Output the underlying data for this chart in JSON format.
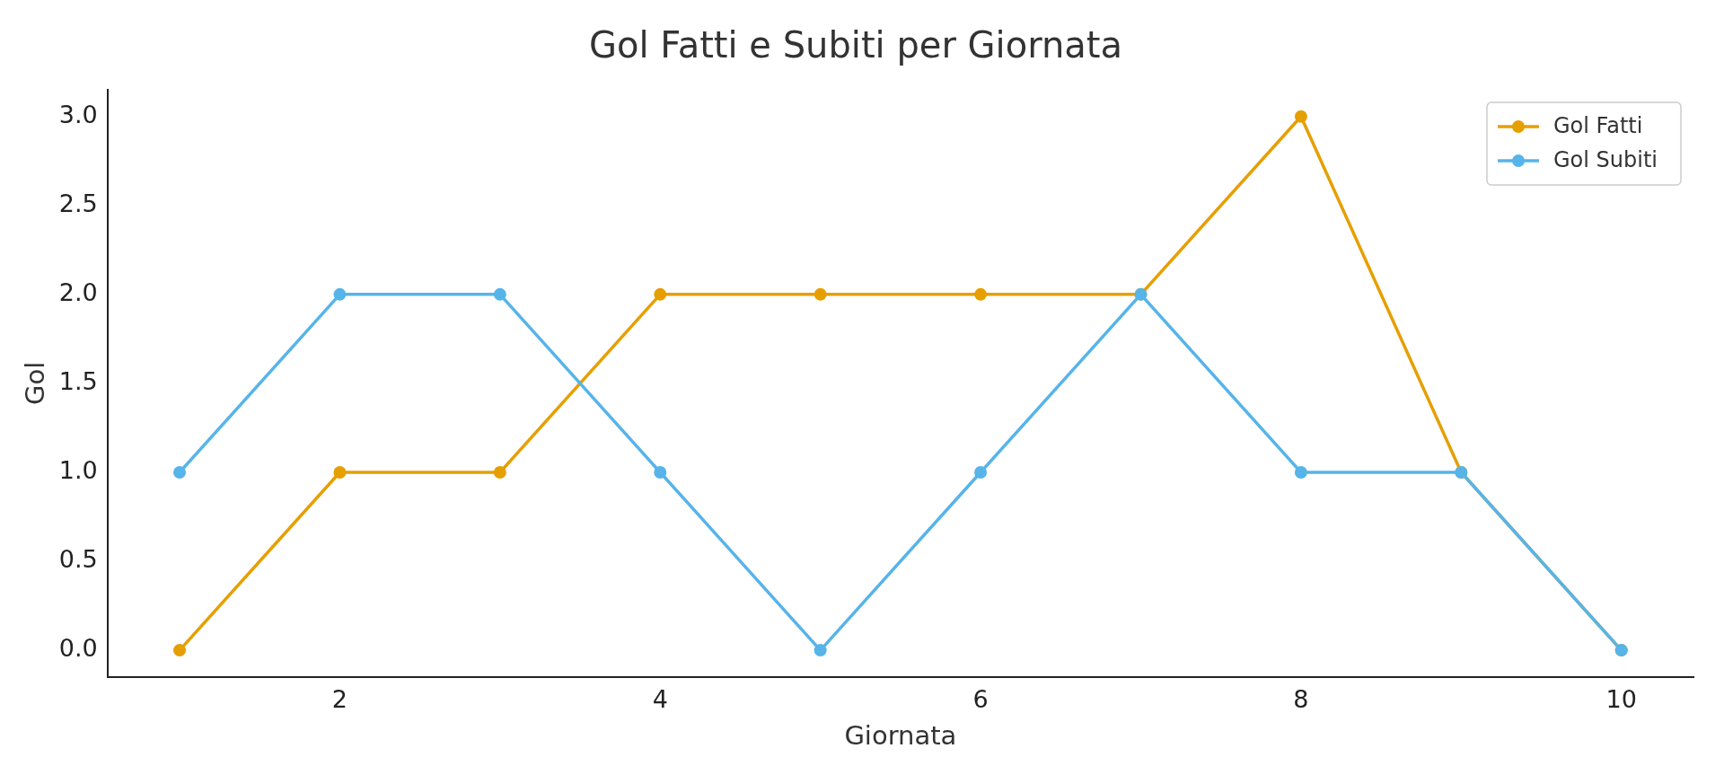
{
  "chart_data": {
    "type": "line",
    "title": "Gol Fatti e Subiti per Giornata",
    "xlabel": "Giornata",
    "ylabel": "Gol",
    "x": [
      1,
      2,
      3,
      4,
      5,
      6,
      7,
      8,
      9,
      10
    ],
    "series": [
      {
        "name": "Gol Fatti",
        "color": "#e69f00",
        "values": [
          0,
          1,
          1,
          2,
          2,
          2,
          2,
          3,
          1,
          0
        ]
      },
      {
        "name": "Gol Subiti",
        "color": "#56b4e9",
        "values": [
          1,
          2,
          2,
          1,
          0,
          1,
          2,
          1,
          1,
          0
        ]
      }
    ],
    "xlim": [
      0.55,
      10.45
    ],
    "xticks": [
      2,
      4,
      6,
      8,
      10
    ],
    "ylim": [
      -0.15,
      3.15
    ],
    "yticks": [
      {
        "value": 0,
        "label": "0.0"
      },
      {
        "value": 0.5,
        "label": "0.5"
      },
      {
        "value": 1,
        "label": "1.0"
      },
      {
        "value": 1.5,
        "label": "1.5"
      },
      {
        "value": 2,
        "label": "2.0"
      },
      {
        "value": 2.5,
        "label": "2.5"
      },
      {
        "value": 3,
        "label": "3.0"
      }
    ],
    "grid": false,
    "legend": "top right",
    "marker": "circle",
    "line_style": "solid"
  }
}
